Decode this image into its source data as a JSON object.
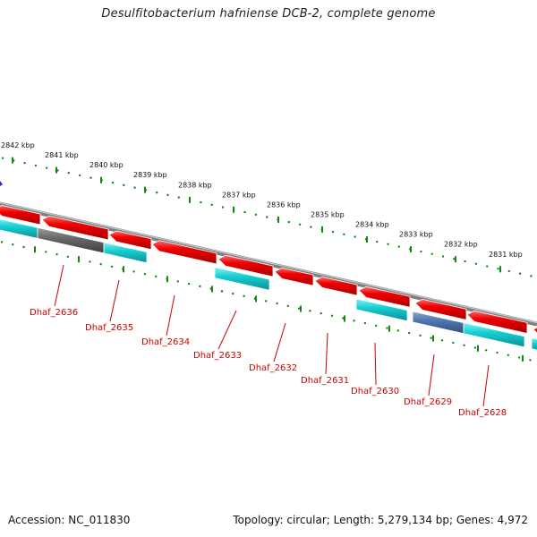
{
  "title": "Desulfitobacterium hafniense DCB-2, complete genome",
  "footer": {
    "accession": "Accession: NC_011830",
    "topology": "Topology: circular; Length: 5,279,134 bp; Genes: 4,972"
  },
  "colors": {
    "forward_gene": "#e60000",
    "reverse_gene": "#00c8cc",
    "unknown_gene": "#666666",
    "selected_gene": "#4f77aa",
    "backbone": "#888888",
    "ruler": "#118811",
    "label": "#cc0000"
  },
  "ruler": {
    "unit": "kbp",
    "labels": [
      "2842 kbp",
      "2841 kbp",
      "2840 kbp",
      "2839 kbp",
      "2838 kbp",
      "2837 kbp",
      "2836 kbp",
      "2835 kbp",
      "2834 kbp",
      "2833 kbp",
      "2832 kbp",
      "2831 kbp"
    ]
  },
  "genes": [
    {
      "name": "Dhaf_2636"
    },
    {
      "name": "Dhaf_2635"
    },
    {
      "name": "Dhaf_2634"
    },
    {
      "name": "Dhaf_2633"
    },
    {
      "name": "Dhaf_2632"
    },
    {
      "name": "Dhaf_2631"
    },
    {
      "name": "Dhaf_2630"
    },
    {
      "name": "Dhaf_2629"
    },
    {
      "name": "Dhaf_2628"
    }
  ]
}
